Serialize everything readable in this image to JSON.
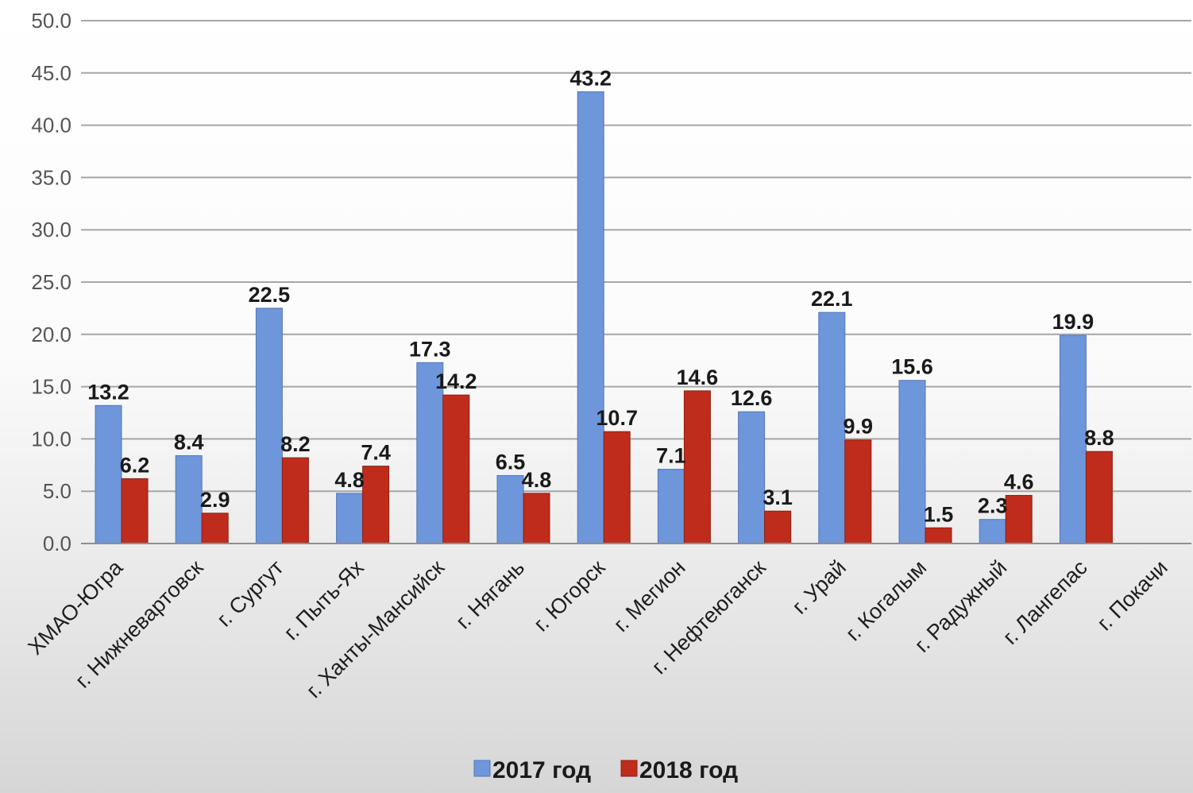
{
  "chart_data": {
    "type": "bar",
    "title": "",
    "xlabel": "",
    "ylabel": "",
    "ylim": [
      0,
      50
    ],
    "yticks": [
      "0.0",
      "5.0",
      "10.0",
      "15.0",
      "20.0",
      "25.0",
      "30.0",
      "35.0",
      "40.0",
      "45.0",
      "50.0"
    ],
    "grid": true,
    "legend_position": "bottom",
    "categories": [
      "ХМАО-Югра",
      "г. Нижневартовск",
      "г. Сургут",
      "г. Пыть-Ях",
      "г. Ханты-Мансийск",
      "г. Нягань",
      "г. Югорск",
      "г. Мегион",
      "г. Нефтеюганск",
      "г. Урай",
      "г. Когалым",
      "г. Радужный",
      "г. Лангепас",
      "г. Покачи"
    ],
    "series": [
      {
        "name": "2017 год",
        "color": "#6d96db",
        "values": [
          13.2,
          8.4,
          22.5,
          4.8,
          17.3,
          6.5,
          43.2,
          7.1,
          12.6,
          22.1,
          15.6,
          2.3,
          19.9,
          null
        ],
        "labels": [
          "13.2",
          "8.4",
          "22.5",
          "4.8",
          "17.3",
          "6.5",
          "43.2",
          "7.1",
          "12.6",
          "22.1",
          "15.6",
          "2.3",
          "19.9",
          ""
        ]
      },
      {
        "name": "2018 год",
        "color": "#bf2c1c",
        "values": [
          6.2,
          2.9,
          8.2,
          7.4,
          14.2,
          4.8,
          10.7,
          14.6,
          3.1,
          9.9,
          1.5,
          4.6,
          8.8,
          null
        ],
        "labels": [
          "6.2",
          "2.9",
          "8.2",
          "7.4",
          "14.2",
          "4.8",
          "10.7",
          "14.6",
          "3.1",
          "9.9",
          "1.5",
          "4.6",
          "8.8",
          ""
        ]
      }
    ]
  }
}
